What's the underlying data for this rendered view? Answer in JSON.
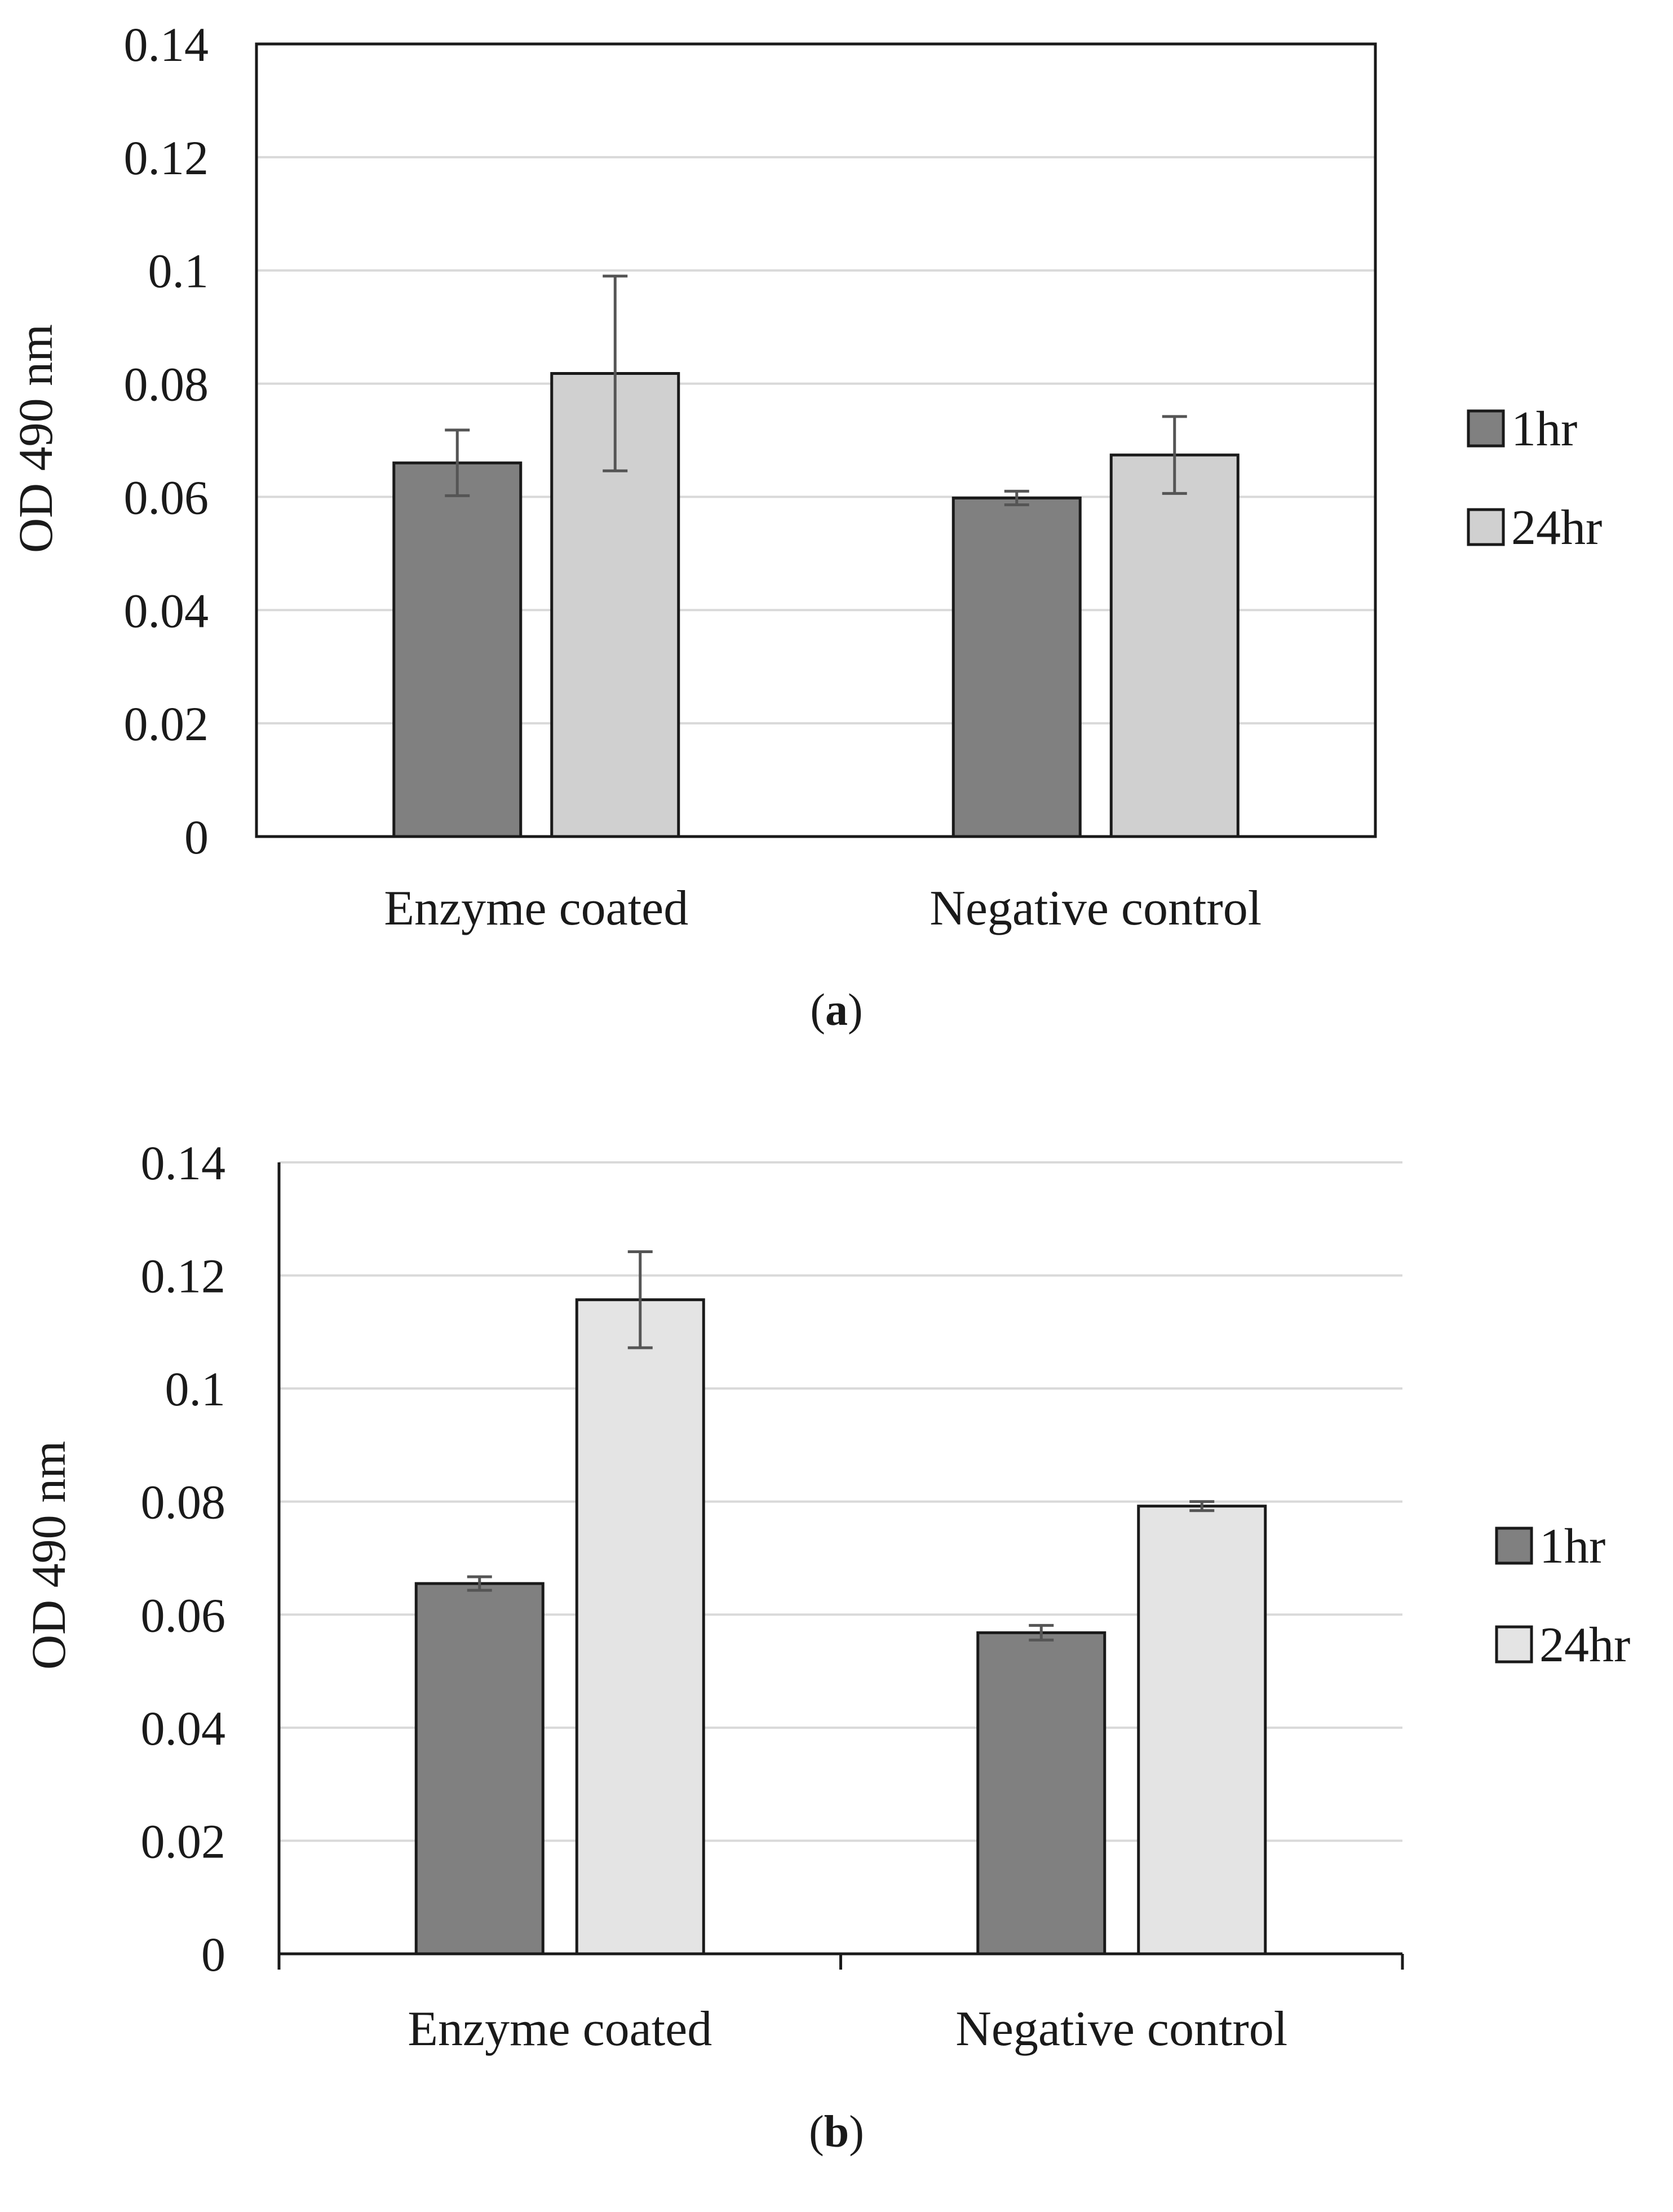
{
  "charts": [
    {
      "id": "a",
      "panel_label": "a",
      "frame": "box",
      "bar_colors": [
        "#808080",
        "#d0d0d0"
      ],
      "chart_data": {
        "type": "bar",
        "categories": [
          "Enzyme coated",
          "Negative control"
        ],
        "ylabel": "OD 490 nm",
        "xlabel": "",
        "ylim": [
          0,
          0.14
        ],
        "yticks": [
          "0",
          "0.02",
          "0.04",
          "0.06",
          "0.08",
          "0.1",
          "0.12",
          "0.14"
        ],
        "grid": true,
        "legend_position": "right",
        "series": [
          {
            "name": "1hr",
            "values": [
              0.066,
              0.0598
            ],
            "errors": [
              0.0058,
              0.0012
            ]
          },
          {
            "name": "24hr",
            "values": [
              0.0818,
              0.0674
            ],
            "errors": [
              0.0172,
              0.0068
            ]
          }
        ]
      }
    },
    {
      "id": "b",
      "panel_label": "b",
      "frame": "axis",
      "bar_colors": [
        "#808080",
        "#e4e4e4"
      ],
      "chart_data": {
        "type": "bar",
        "categories": [
          "Enzyme coated",
          "Negative control"
        ],
        "ylabel": "OD 490 nm",
        "xlabel": "",
        "ylim": [
          0,
          0.14
        ],
        "yticks": [
          "0",
          "0.02",
          "0.04",
          "0.06",
          "0.08",
          "0.1",
          "0.12",
          "0.14"
        ],
        "grid": true,
        "legend_position": "right",
        "series": [
          {
            "name": "1hr",
            "values": [
              0.0655,
              0.0568
            ],
            "errors": [
              0.0012,
              0.0013
            ]
          },
          {
            "name": "24hr",
            "values": [
              0.1157,
              0.0792
            ],
            "errors": [
              0.0085,
              0.0008
            ]
          }
        ]
      }
    }
  ]
}
